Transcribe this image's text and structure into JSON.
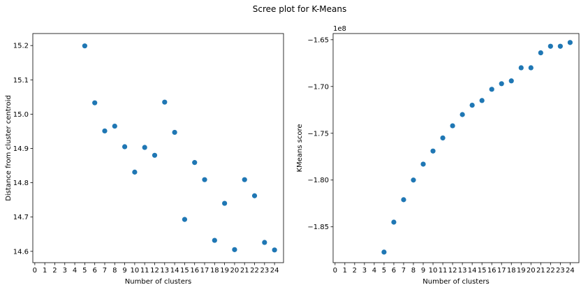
{
  "figure": {
    "suptitle": "Scree plot for K-Means"
  },
  "chart_data": [
    {
      "type": "scatter",
      "title": "",
      "xlabel": "Number of clusters",
      "ylabel": "Distance from cluster centroid",
      "marker_color": "#1f77b4",
      "grid": false,
      "legend": false,
      "xlim": [
        -0.2,
        24.9
      ],
      "ylim": [
        14.567,
        15.235
      ],
      "xticks": [
        0,
        1,
        2,
        3,
        4,
        5,
        6,
        7,
        8,
        9,
        10,
        11,
        12,
        13,
        14,
        15,
        16,
        17,
        18,
        19,
        20,
        21,
        22,
        23,
        24
      ],
      "yticks": [
        14.6,
        14.7,
        14.8,
        14.9,
        15.0,
        15.1,
        15.2
      ],
      "ytick_labels": [
        "14.6",
        "14.7",
        "14.8",
        "14.9",
        "15.0",
        "15.1",
        "15.2"
      ],
      "x": [
        5,
        6,
        7,
        8,
        9,
        10,
        11,
        12,
        13,
        14,
        15,
        16,
        17,
        18,
        19,
        20,
        21,
        22,
        23,
        24
      ],
      "y": [
        15.199,
        15.033,
        14.951,
        14.965,
        14.905,
        14.831,
        14.903,
        14.88,
        15.035,
        14.947,
        14.693,
        14.859,
        14.809,
        14.632,
        14.74,
        14.605,
        14.809,
        14.762,
        14.626,
        14.604
      ]
    },
    {
      "type": "scatter",
      "title": "",
      "xlabel": "Number of clusters",
      "ylabel": "KMeans score",
      "y_offset_label": "1e8",
      "marker_color": "#1f77b4",
      "grid": false,
      "legend": false,
      "xlim": [
        -0.2,
        24.9
      ],
      "ylim": [
        -1.8883,
        -1.6434
      ],
      "xticks": [
        0,
        1,
        2,
        3,
        4,
        5,
        6,
        7,
        8,
        9,
        10,
        11,
        12,
        13,
        14,
        15,
        16,
        17,
        18,
        19,
        20,
        21,
        22,
        23,
        24
      ],
      "yticks": [
        -1.85,
        -1.8,
        -1.75,
        -1.7,
        -1.65
      ],
      "ytick_labels": [
        "−1.85",
        "−1.80",
        "−1.75",
        "−1.70",
        "−1.65"
      ],
      "x": [
        5,
        6,
        7,
        8,
        9,
        10,
        11,
        12,
        13,
        14,
        15,
        16,
        17,
        18,
        19,
        20,
        21,
        22,
        23,
        24
      ],
      "y": [
        -1.877,
        -1.845,
        -1.821,
        -1.8,
        -1.783,
        -1.769,
        -1.755,
        -1.742,
        -1.73,
        -1.72,
        -1.715,
        -1.703,
        -1.697,
        -1.694,
        -1.68,
        -1.68,
        -1.664,
        -1.657,
        -1.657,
        -1.653
      ]
    }
  ]
}
